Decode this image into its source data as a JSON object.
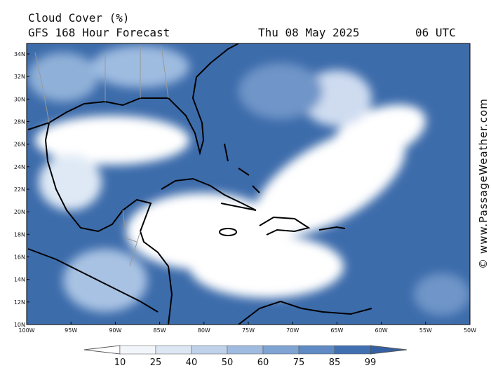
{
  "header": {
    "title": "Cloud Cover (%)",
    "subtitle": "GFS 168 Hour Forecast",
    "date": "Thu 08 May 2025",
    "time": "06 UTC"
  },
  "map": {
    "lat_labels": [
      "34N",
      "32N",
      "30N",
      "28N",
      "26N",
      "24N",
      "22N",
      "20N",
      "18N",
      "16N",
      "14N",
      "12N",
      "10N"
    ],
    "lon_labels": [
      "100W",
      "95W",
      "90W",
      "85W",
      "80W",
      "75W",
      "70W",
      "65W",
      "60W",
      "55W",
      "50W"
    ]
  },
  "legend": {
    "labels": [
      10,
      25,
      40,
      50,
      60,
      75,
      85,
      99
    ]
  },
  "credit": "© www.PassageWeather.com"
}
